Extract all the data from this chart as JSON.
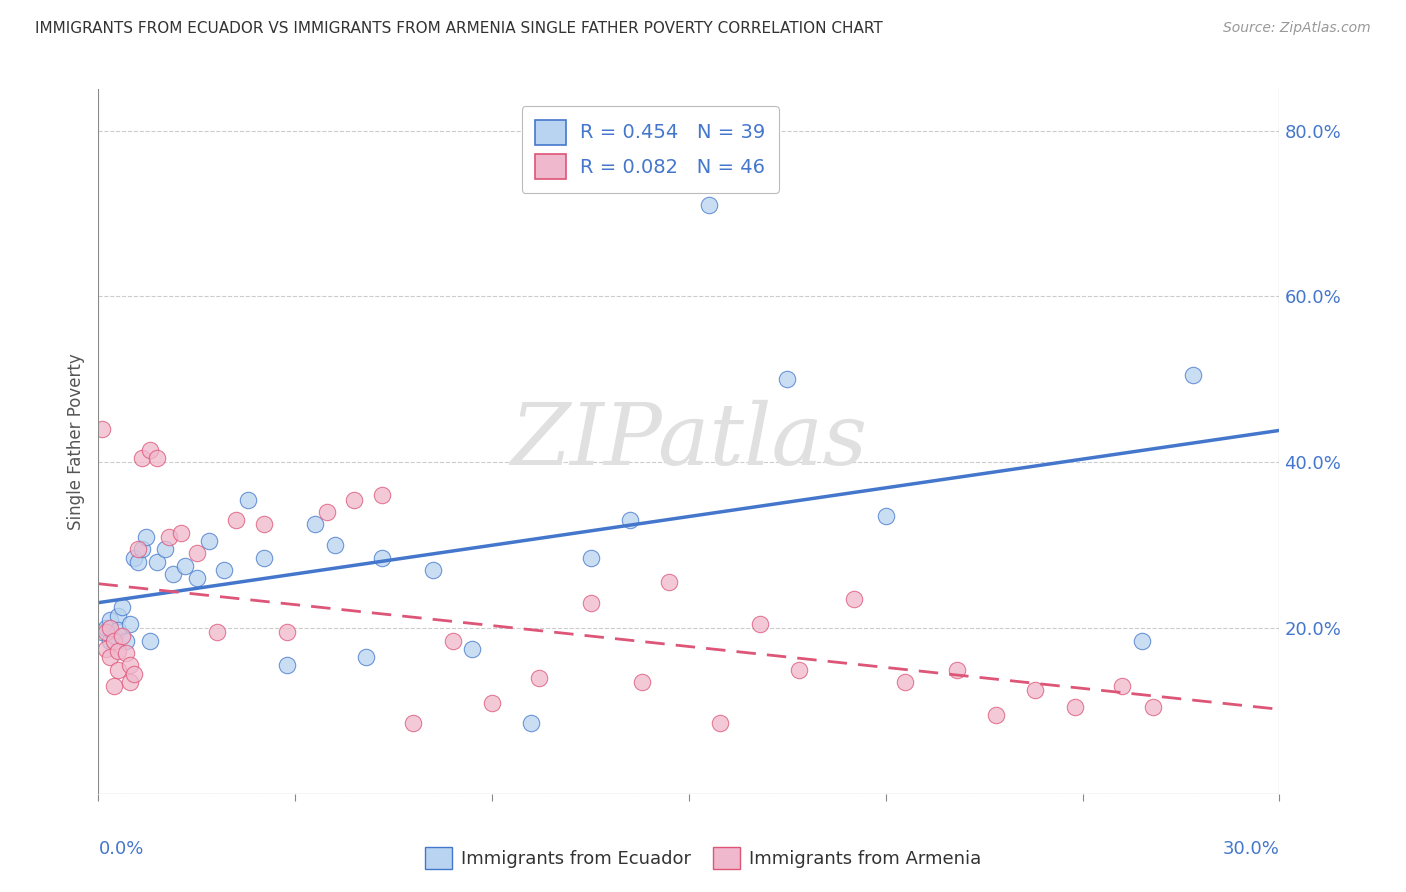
{
  "title": "IMMIGRANTS FROM ECUADOR VS IMMIGRANTS FROM ARMENIA SINGLE FATHER POVERTY CORRELATION CHART",
  "source": "Source: ZipAtlas.com",
  "ylabel": "Single Father Poverty",
  "ecuador_color": "#b8d4f0",
  "armenia_color": "#f0b8cc",
  "ecuador_line_color": "#4477cc",
  "armenia_line_color": "#dd5577",
  "ecuador_label": "Immigrants from Ecuador",
  "armenia_label": "Immigrants from Armenia",
  "legend1_text": "R = 0.454   N = 39",
  "legend2_text": "R = 0.082   N = 46",
  "xlim": [
    0.0,
    0.3
  ],
  "ylim": [
    0.0,
    0.85
  ],
  "watermark": "ZIPatlas",
  "background_color": "#ffffff",
  "grid_color": "#cccccc",
  "ecuador_x": [
    0.001,
    0.002,
    0.003,
    0.003,
    0.004,
    0.005,
    0.005,
    0.006,
    0.007,
    0.008,
    0.009,
    0.01,
    0.011,
    0.012,
    0.013,
    0.015,
    0.017,
    0.019,
    0.022,
    0.025,
    0.028,
    0.032,
    0.038,
    0.042,
    0.048,
    0.055,
    0.06,
    0.068,
    0.072,
    0.085,
    0.095,
    0.11,
    0.125,
    0.135,
    0.155,
    0.175,
    0.2,
    0.265,
    0.278
  ],
  "ecuador_y": [
    0.195,
    0.2,
    0.185,
    0.21,
    0.19,
    0.215,
    0.198,
    0.225,
    0.185,
    0.205,
    0.285,
    0.28,
    0.295,
    0.31,
    0.185,
    0.28,
    0.295,
    0.265,
    0.275,
    0.26,
    0.305,
    0.27,
    0.355,
    0.285,
    0.155,
    0.325,
    0.3,
    0.165,
    0.285,
    0.27,
    0.175,
    0.085,
    0.285,
    0.33,
    0.71,
    0.5,
    0.335,
    0.185,
    0.505
  ],
  "armenia_x": [
    0.001,
    0.002,
    0.002,
    0.003,
    0.003,
    0.004,
    0.004,
    0.005,
    0.005,
    0.006,
    0.007,
    0.008,
    0.008,
    0.009,
    0.01,
    0.011,
    0.013,
    0.015,
    0.018,
    0.021,
    0.025,
    0.03,
    0.035,
    0.042,
    0.048,
    0.058,
    0.065,
    0.072,
    0.08,
    0.09,
    0.1,
    0.112,
    0.125,
    0.138,
    0.145,
    0.158,
    0.168,
    0.178,
    0.192,
    0.205,
    0.218,
    0.228,
    0.238,
    0.248,
    0.26,
    0.268
  ],
  "armenia_y": [
    0.44,
    0.195,
    0.175,
    0.2,
    0.165,
    0.185,
    0.13,
    0.172,
    0.15,
    0.19,
    0.17,
    0.155,
    0.135,
    0.145,
    0.295,
    0.405,
    0.415,
    0.405,
    0.31,
    0.315,
    0.29,
    0.195,
    0.33,
    0.325,
    0.195,
    0.34,
    0.355,
    0.36,
    0.085,
    0.185,
    0.11,
    0.14,
    0.23,
    0.135,
    0.255,
    0.085,
    0.205,
    0.15,
    0.235,
    0.135,
    0.15,
    0.095,
    0.125,
    0.105,
    0.13,
    0.105
  ]
}
